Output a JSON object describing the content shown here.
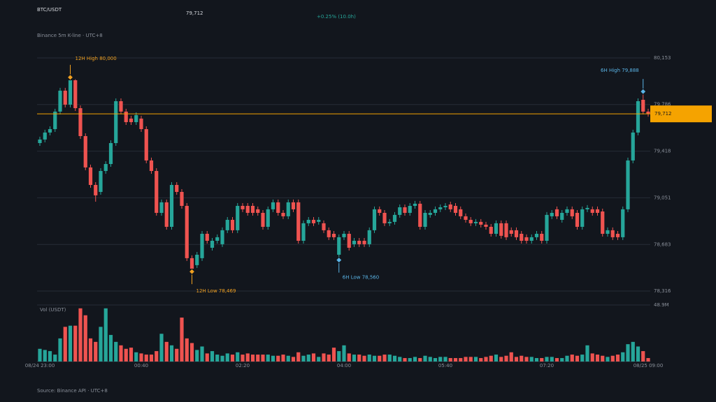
{
  "header": {
    "symbol": "BTC/USDT",
    "price": "79,712",
    "change": "+0.25% (10.0h)",
    "subtitle": "Binance 5m K-line · UTC+8"
  },
  "chart_data": {
    "type": "candlestick",
    "categories": [
      "08/24 23:00",
      null,
      null,
      null,
      null,
      null,
      null,
      null,
      null,
      null,
      null,
      null,
      null,
      null,
      null,
      null,
      null,
      null,
      null,
      null,
      "00:40",
      null,
      null,
      null,
      null,
      null,
      null,
      null,
      null,
      null,
      null,
      null,
      null,
      null,
      null,
      null,
      null,
      null,
      null,
      null,
      "02:20",
      null,
      null,
      null,
      null,
      null,
      null,
      null,
      null,
      null,
      null,
      null,
      null,
      null,
      null,
      null,
      null,
      null,
      null,
      null,
      "04:00",
      null,
      null,
      null,
      null,
      null,
      null,
      null,
      null,
      null,
      null,
      null,
      null,
      null,
      null,
      null,
      null,
      null,
      null,
      null,
      "05:40",
      null,
      null,
      null,
      null,
      null,
      null,
      null,
      null,
      null,
      null,
      null,
      null,
      null,
      null,
      null,
      null,
      null,
      null,
      null,
      "07:20",
      null,
      null,
      null,
      null,
      null,
      null,
      null,
      null,
      null,
      null,
      null,
      null,
      null,
      null,
      null,
      null,
      null,
      null,
      null,
      "08/25 09:00"
    ],
    "open": [
      79482,
      79510,
      79565,
      79592,
      79730,
      79895,
      79785,
      79977,
      79757,
      79537,
      79290,
      79152,
      79097,
      79262,
      79317,
      79482,
      79812,
      79730,
      79675,
      79647,
      79675,
      79592,
      79345,
      79262,
      78932,
      79015,
      78822,
      79152,
      79097,
      78987,
      78575,
      78520,
      78575,
      78767,
      78657,
      78712,
      78685,
      78795,
      78877,
      78795,
      78987,
      78987,
      78987,
      78960,
      78932,
      78822,
      78960,
      79015,
      78932,
      78905,
      79015,
      79015,
      78712,
      78850,
      78877,
      78861,
      78850,
      78795,
      78767,
      78602,
      78740,
      78767,
      78685,
      78712,
      78712,
      78685,
      78795,
      78960,
      78932,
      78850,
      78861,
      78916,
      78976,
      78932,
      78987,
      79004,
      78822,
      78916,
      78932,
      78960,
      78976,
      78998,
      78987,
      78960,
      78905,
      78877,
      78850,
      78861,
      78839,
      78822,
      78767,
      78850,
      78850,
      78795,
      78795,
      78767,
      78740,
      78712,
      78740,
      78767,
      78712,
      78905,
      78960,
      78877,
      78932,
      78960,
      78932,
      78822,
      78960,
      78960,
      78960,
      78943,
      78767,
      78795,
      78767,
      78740,
      78960,
      79345,
      79565,
      79823,
      79730
    ],
    "high": [
      79532,
      79587,
      79614,
      79752,
      79917,
      79917,
      80000,
      79985,
      79779,
      79559,
      79312,
      79174,
      79284,
      79339,
      79504,
      79834,
      79834,
      79752,
      79697,
      79724,
      79697,
      79614,
      79367,
      79284,
      79037,
      79037,
      79174,
      79174,
      79119,
      79009,
      78597,
      78624,
      78789,
      78789,
      78734,
      78762,
      78817,
      78899,
      78899,
      79009,
      79009,
      79009,
      79009,
      78982,
      78954,
      78982,
      79037,
      79037,
      78954,
      79037,
      79037,
      79037,
      78872,
      78899,
      78899,
      78899,
      78872,
      78817,
      78789,
      78762,
      78789,
      78789,
      78734,
      78734,
      78734,
      78817,
      78982,
      78982,
      78954,
      78883,
      78938,
      78998,
      78998,
      79009,
      79026,
      79026,
      78954,
      78954,
      78982,
      78998,
      79009,
      79020,
      79009,
      78982,
      78927,
      78899,
      78883,
      78883,
      78861,
      78844,
      78872,
      78872,
      78872,
      78817,
      78817,
      78789,
      78762,
      78762,
      78789,
      78789,
      78938,
      78954,
      78982,
      78954,
      78982,
      78982,
      78954,
      78982,
      78993,
      78982,
      78982,
      78965,
      78817,
      78817,
      78789,
      78982,
      79367,
      79587,
      79834,
      79888,
      79752
    ],
    "low": [
      79460,
      79488,
      79543,
      79570,
      79708,
      79763,
      79763,
      79735,
      79515,
      79268,
      79130,
      79020,
      79075,
      79240,
      79295,
      79460,
      79708,
      79625,
      79625,
      79625,
      79570,
      79323,
      79240,
      78910,
      78910,
      78800,
      78800,
      79075,
      78965,
      78553,
      78469,
      78498,
      78553,
      78690,
      78635,
      78690,
      78663,
      78773,
      78773,
      78773,
      78938,
      78910,
      78910,
      78910,
      78800,
      78800,
      78938,
      78910,
      78883,
      78883,
      78938,
      78690,
      78690,
      78828,
      78828,
      78839,
      78773,
      78718,
      78718,
      78560,
      78718,
      78635,
      78663,
      78663,
      78663,
      78663,
      78773,
      78910,
      78828,
      78828,
      78839,
      78894,
      78910,
      78910,
      78965,
      78800,
      78800,
      78894,
      78910,
      78938,
      78954,
      78938,
      78910,
      78883,
      78855,
      78828,
      78828,
      78817,
      78800,
      78745,
      78745,
      78729,
      78718,
      78745,
      78718,
      78690,
      78690,
      78690,
      78718,
      78690,
      78690,
      78883,
      78883,
      78855,
      78910,
      78883,
      78800,
      78800,
      78938,
      78910,
      78910,
      78745,
      78745,
      78718,
      78718,
      78718,
      78938,
      79323,
      79543,
      79708,
      79690
    ],
    "close": [
      79510,
      79565,
      79592,
      79730,
      79895,
      79785,
      79977,
      79757,
      79537,
      79290,
      79152,
      79070,
      79262,
      79317,
      79482,
      79812,
      79730,
      79647,
      79647,
      79702,
      79592,
      79345,
      79262,
      78932,
      79015,
      78822,
      79152,
      79097,
      78987,
      78575,
      78492,
      78602,
      78767,
      78712,
      78712,
      78740,
      78795,
      78877,
      78795,
      78987,
      78960,
      78932,
      78932,
      78932,
      78822,
      78960,
      79015,
      78932,
      78905,
      79015,
      78960,
      78712,
      78850,
      78877,
      78850,
      78877,
      78795,
      78740,
      78740,
      78740,
      78767,
      78657,
      78712,
      78685,
      78685,
      78795,
      78960,
      78932,
      78850,
      78861,
      78916,
      78976,
      78932,
      78987,
      79004,
      78822,
      78932,
      78932,
      78960,
      78976,
      78987,
      78960,
      78932,
      78905,
      78877,
      78850,
      78861,
      78839,
      78822,
      78767,
      78850,
      78751,
      78740,
      78767,
      78740,
      78712,
      78712,
      78740,
      78767,
      78712,
      78916,
      78932,
      78905,
      78932,
      78960,
      78905,
      78822,
      78960,
      78971,
      78932,
      78932,
      78767,
      78795,
      78740,
      78740,
      78960,
      79345,
      79565,
      79812,
      79730,
      79712
    ],
    "ylim": [
      78316,
      80153
    ],
    "yticks": [
      {
        "value": 80153,
        "label": "80,153"
      },
      {
        "value": 79786,
        "label": "79,786"
      },
      {
        "value": 79418,
        "label": "79,418"
      },
      {
        "value": 79051,
        "label": "79,051"
      },
      {
        "value": 78683,
        "label": "78,683"
      },
      {
        "value": 78316,
        "label": "78,316"
      }
    ],
    "up_color": "#26a69a",
    "down_color": "#ef5350",
    "last_price_label": "79,712",
    "last_price_color": "#f5a300",
    "annotations": [
      {
        "text": "12H High 80,000",
        "color": "#f0a020"
      },
      {
        "text": "12H Low 78,469",
        "color": "#f0a020"
      },
      {
        "text": "6H High 79,888",
        "color": "#5ab4e6"
      },
      {
        "text": "6H Low 78,560",
        "color": "#5ab4e6"
      }
    ],
    "volume": {
      "title": "Vol (USDT)",
      "values": [
        11,
        10,
        9,
        6,
        20,
        30,
        31,
        31,
        46,
        40,
        20,
        17,
        30,
        46,
        23,
        17,
        14,
        11,
        12,
        8,
        7,
        6,
        6,
        9,
        24,
        17,
        14,
        11,
        38,
        20,
        16,
        10,
        13,
        7,
        9,
        6,
        5,
        7,
        6,
        8,
        6,
        7,
        6,
        6,
        6,
        6,
        5,
        5,
        6,
        5,
        4,
        8,
        5,
        6,
        7,
        4,
        7,
        6,
        12,
        9,
        14,
        7,
        6,
        6,
        5,
        6,
        5,
        5,
        6,
        6,
        5,
        4,
        3,
        3,
        4,
        3,
        5,
        4,
        3,
        4,
        4,
        3,
        3,
        3,
        4,
        4,
        4,
        3,
        4,
        5,
        6,
        4,
        5,
        8,
        4,
        5,
        4,
        4,
        3,
        3,
        4,
        4,
        3,
        3,
        5,
        6,
        5,
        6,
        14,
        7,
        6,
        5,
        4,
        5,
        6,
        8,
        15,
        17,
        13,
        9,
        3
      ],
      "ylim": [
        0,
        48.9
      ],
      "yticks": [
        {
          "value": 48.9,
          "label": "48.9M"
        }
      ]
    }
  },
  "footer": {
    "source": "Source: Binance API · UTC+8"
  }
}
